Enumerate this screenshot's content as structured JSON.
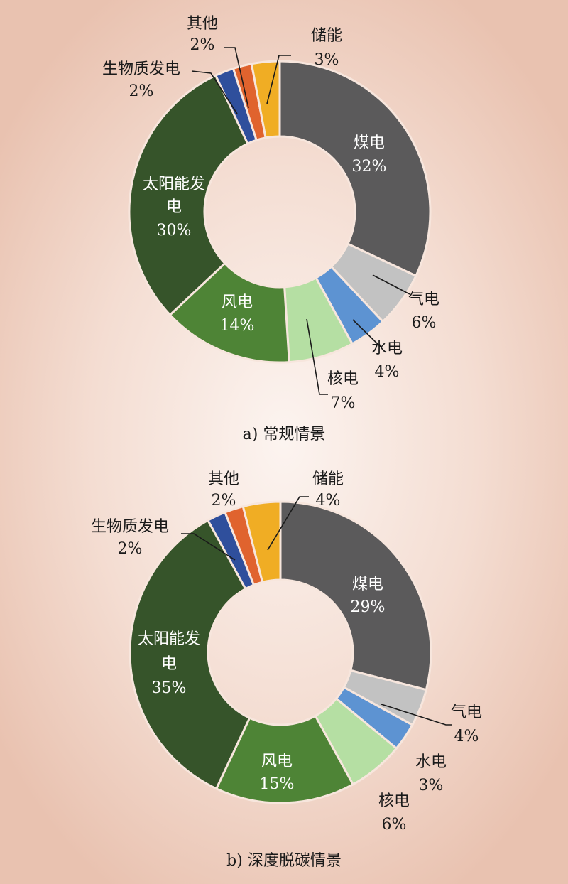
{
  "chart_data": [
    {
      "type": "pie",
      "caption": "a) 常规情景",
      "categories": [
        "煤电",
        "气电",
        "水电",
        "核电",
        "风电",
        "太阳能发电",
        "生物质发电",
        "其他",
        "储能"
      ],
      "values": [
        32,
        6,
        4,
        7,
        14,
        30,
        2,
        2,
        3
      ],
      "value_labels": [
        "32%",
        "6%",
        "4%",
        "7%",
        "14%",
        "30%",
        "2%",
        "2%",
        "3%"
      ]
    },
    {
      "type": "pie",
      "caption": "b) 深度脱碳情景",
      "categories": [
        "煤电",
        "气电",
        "水电",
        "核电",
        "风电",
        "太阳能发电",
        "生物质发电",
        "其他",
        "储能"
      ],
      "values": [
        29,
        4,
        3,
        6,
        15,
        35,
        2,
        2,
        4
      ],
      "value_labels": [
        "29%",
        "4%",
        "3%",
        "6%",
        "15%",
        "35%",
        "2%",
        "2%",
        "4%"
      ]
    }
  ],
  "colors": [
    "#5b5a5b",
    "#c2c2c2",
    "#5d93d2",
    "#b5dfa3",
    "#4e8436",
    "#36542a",
    "#2f4f9c",
    "#e0632e",
    "#f0ad24"
  ]
}
